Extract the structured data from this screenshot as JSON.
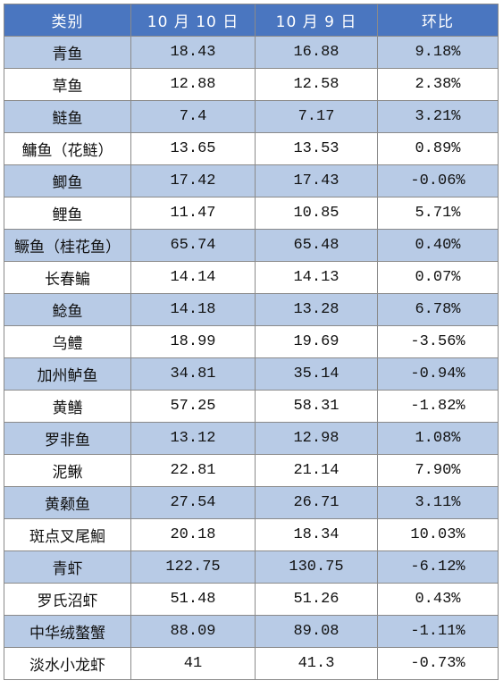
{
  "table": {
    "headers": [
      "类别",
      "10 月 10 日",
      "10 月 9 日",
      "环比"
    ],
    "rows": [
      {
        "name": "青鱼",
        "oct10": "18.43",
        "oct9": "16.88",
        "change": "9.18%"
      },
      {
        "name": "草鱼",
        "oct10": "12.88",
        "oct9": "12.58",
        "change": "2.38%"
      },
      {
        "name": "鲢鱼",
        "oct10": "7.4",
        "oct9": "7.17",
        "change": "3.21%"
      },
      {
        "name": "鳙鱼（花鲢）",
        "oct10": "13.65",
        "oct9": "13.53",
        "change": "0.89%"
      },
      {
        "name": "鲫鱼",
        "oct10": "17.42",
        "oct9": "17.43",
        "change": "-0.06%"
      },
      {
        "name": "鲤鱼",
        "oct10": "11.47",
        "oct9": "10.85",
        "change": "5.71%"
      },
      {
        "name": "鳜鱼（桂花鱼）",
        "oct10": "65.74",
        "oct9": "65.48",
        "change": "0.40%"
      },
      {
        "name": "长春鳊",
        "oct10": "14.14",
        "oct9": "14.13",
        "change": "0.07%"
      },
      {
        "name": "鲶鱼",
        "oct10": "14.18",
        "oct9": "13.28",
        "change": "6.78%"
      },
      {
        "name": "乌鳢",
        "oct10": "18.99",
        "oct9": "19.69",
        "change": "-3.56%"
      },
      {
        "name": "加州鲈鱼",
        "oct10": "34.81",
        "oct9": "35.14",
        "change": "-0.94%"
      },
      {
        "name": "黄鳝",
        "oct10": "57.25",
        "oct9": "58.31",
        "change": "-1.82%"
      },
      {
        "name": "罗非鱼",
        "oct10": "13.12",
        "oct9": "12.98",
        "change": "1.08%"
      },
      {
        "name": "泥鳅",
        "oct10": "22.81",
        "oct9": "21.14",
        "change": "7.90%"
      },
      {
        "name": "黄颡鱼",
        "oct10": "27.54",
        "oct9": "26.71",
        "change": "3.11%"
      },
      {
        "name": "斑点叉尾鮰",
        "oct10": "20.18",
        "oct9": "18.34",
        "change": "10.03%"
      },
      {
        "name": "青虾",
        "oct10": "122.75",
        "oct9": "130.75",
        "change": "-6.12%"
      },
      {
        "name": "罗氏沼虾",
        "oct10": "51.48",
        "oct9": "51.26",
        "change": "0.43%"
      },
      {
        "name": "中华绒螯蟹",
        "oct10": "88.09",
        "oct9": "89.08",
        "change": "-1.11%"
      },
      {
        "name": "淡水小龙虾",
        "oct10": "41",
        "oct9": "41.3",
        "change": "-0.73%"
      }
    ]
  },
  "colors": {
    "header_bg": "#4a76c0",
    "shaded_row_bg": "#b8cbe6",
    "plain_row_bg": "#ffffff"
  }
}
